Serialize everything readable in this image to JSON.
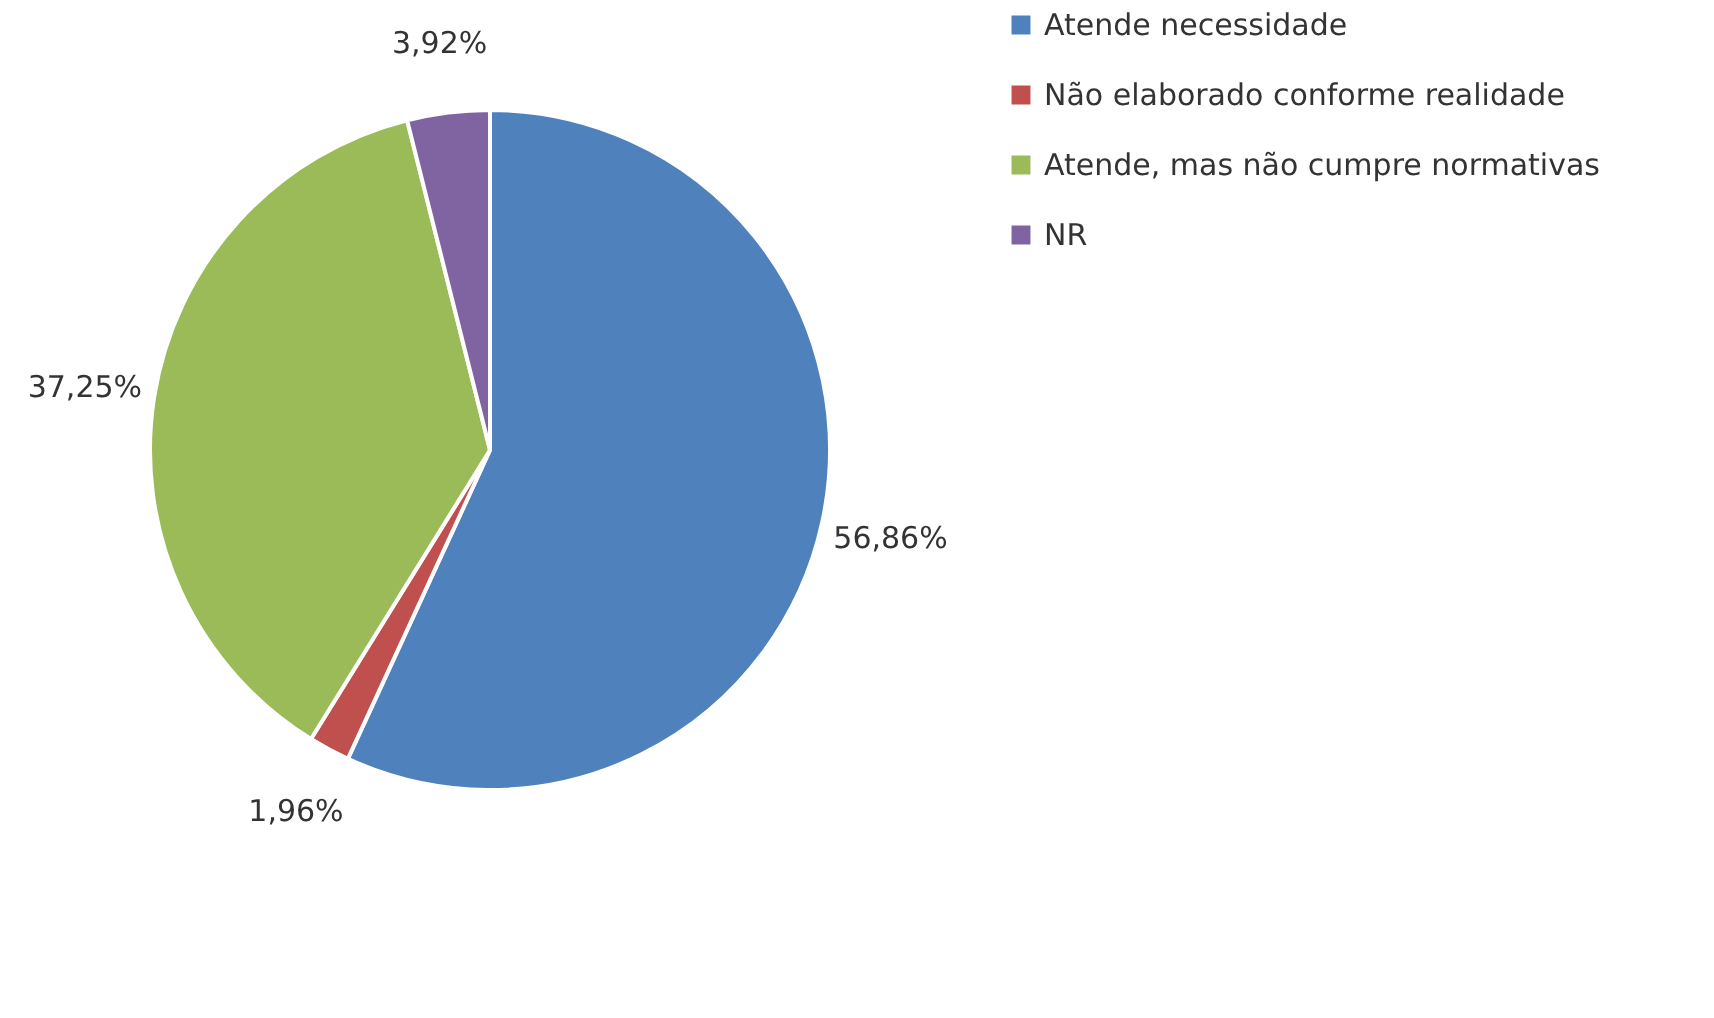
{
  "chart_data": {
    "type": "pie",
    "categories": [
      "Atende necessidade",
      "Não elaborado conforme realidade",
      "Atende, mas não cumpre normativas",
      "NR"
    ],
    "values": [
      56.86,
      1.96,
      37.25,
      3.92
    ],
    "colors": [
      "#4f81bd",
      "#c0504d",
      "#9bbb59",
      "#8064a2"
    ],
    "value_labels": [
      "56,86%",
      "1,96%",
      "37,25%",
      "3,92%"
    ],
    "legend": "right"
  }
}
